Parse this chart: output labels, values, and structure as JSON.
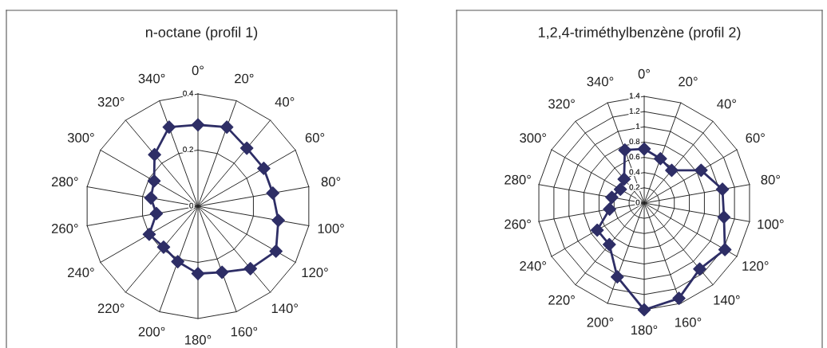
{
  "chart_data": [
    {
      "type": "radar",
      "title": "n-octane (profil 1)",
      "categories": [
        "0°",
        "20°",
        "40°",
        "60°",
        "80°",
        "100°",
        "120°",
        "140°",
        "160°",
        "180°",
        "200°",
        "220°",
        "240°",
        "260°",
        "280°",
        "300°",
        "320°",
        "340°"
      ],
      "series": [
        {
          "color": "#2e2e66",
          "values": [
            0.29,
            0.3,
            0.27,
            0.27,
            0.27,
            0.29,
            0.32,
            0.29,
            0.25,
            0.24,
            0.21,
            0.19,
            0.2,
            0.15,
            0.17,
            0.18,
            0.24,
            0.3
          ]
        }
      ],
      "ylim": [
        0,
        0.4
      ],
      "yticks": [
        0,
        0.2,
        0.4
      ],
      "marker": "diamond",
      "grid": true
    },
    {
      "type": "radar",
      "title": "1,2,4-triméthylbenzène (profil 2)",
      "categories": [
        "0°",
        "20°",
        "40°",
        "60°",
        "80°",
        "100°",
        "120°",
        "140°",
        "160°",
        "180°",
        "200°",
        "220°",
        "240°",
        "260°",
        "280°",
        "300°",
        "320°",
        "340°"
      ],
      "series": [
        {
          "color": "#2e2e66",
          "values": [
            0.71,
            0.62,
            0.56,
            0.86,
            1.04,
            1.06,
            1.22,
            1.13,
            1.33,
            1.4,
            1.03,
            0.71,
            0.71,
            0.46,
            0.43,
            0.36,
            0.41,
            0.74
          ]
        }
      ],
      "ylim": [
        0,
        1.4
      ],
      "yticks": [
        0,
        0.2,
        0.4,
        0.6,
        0.8,
        1,
        1.2,
        1.4
      ],
      "marker": "diamond",
      "grid": true
    }
  ]
}
